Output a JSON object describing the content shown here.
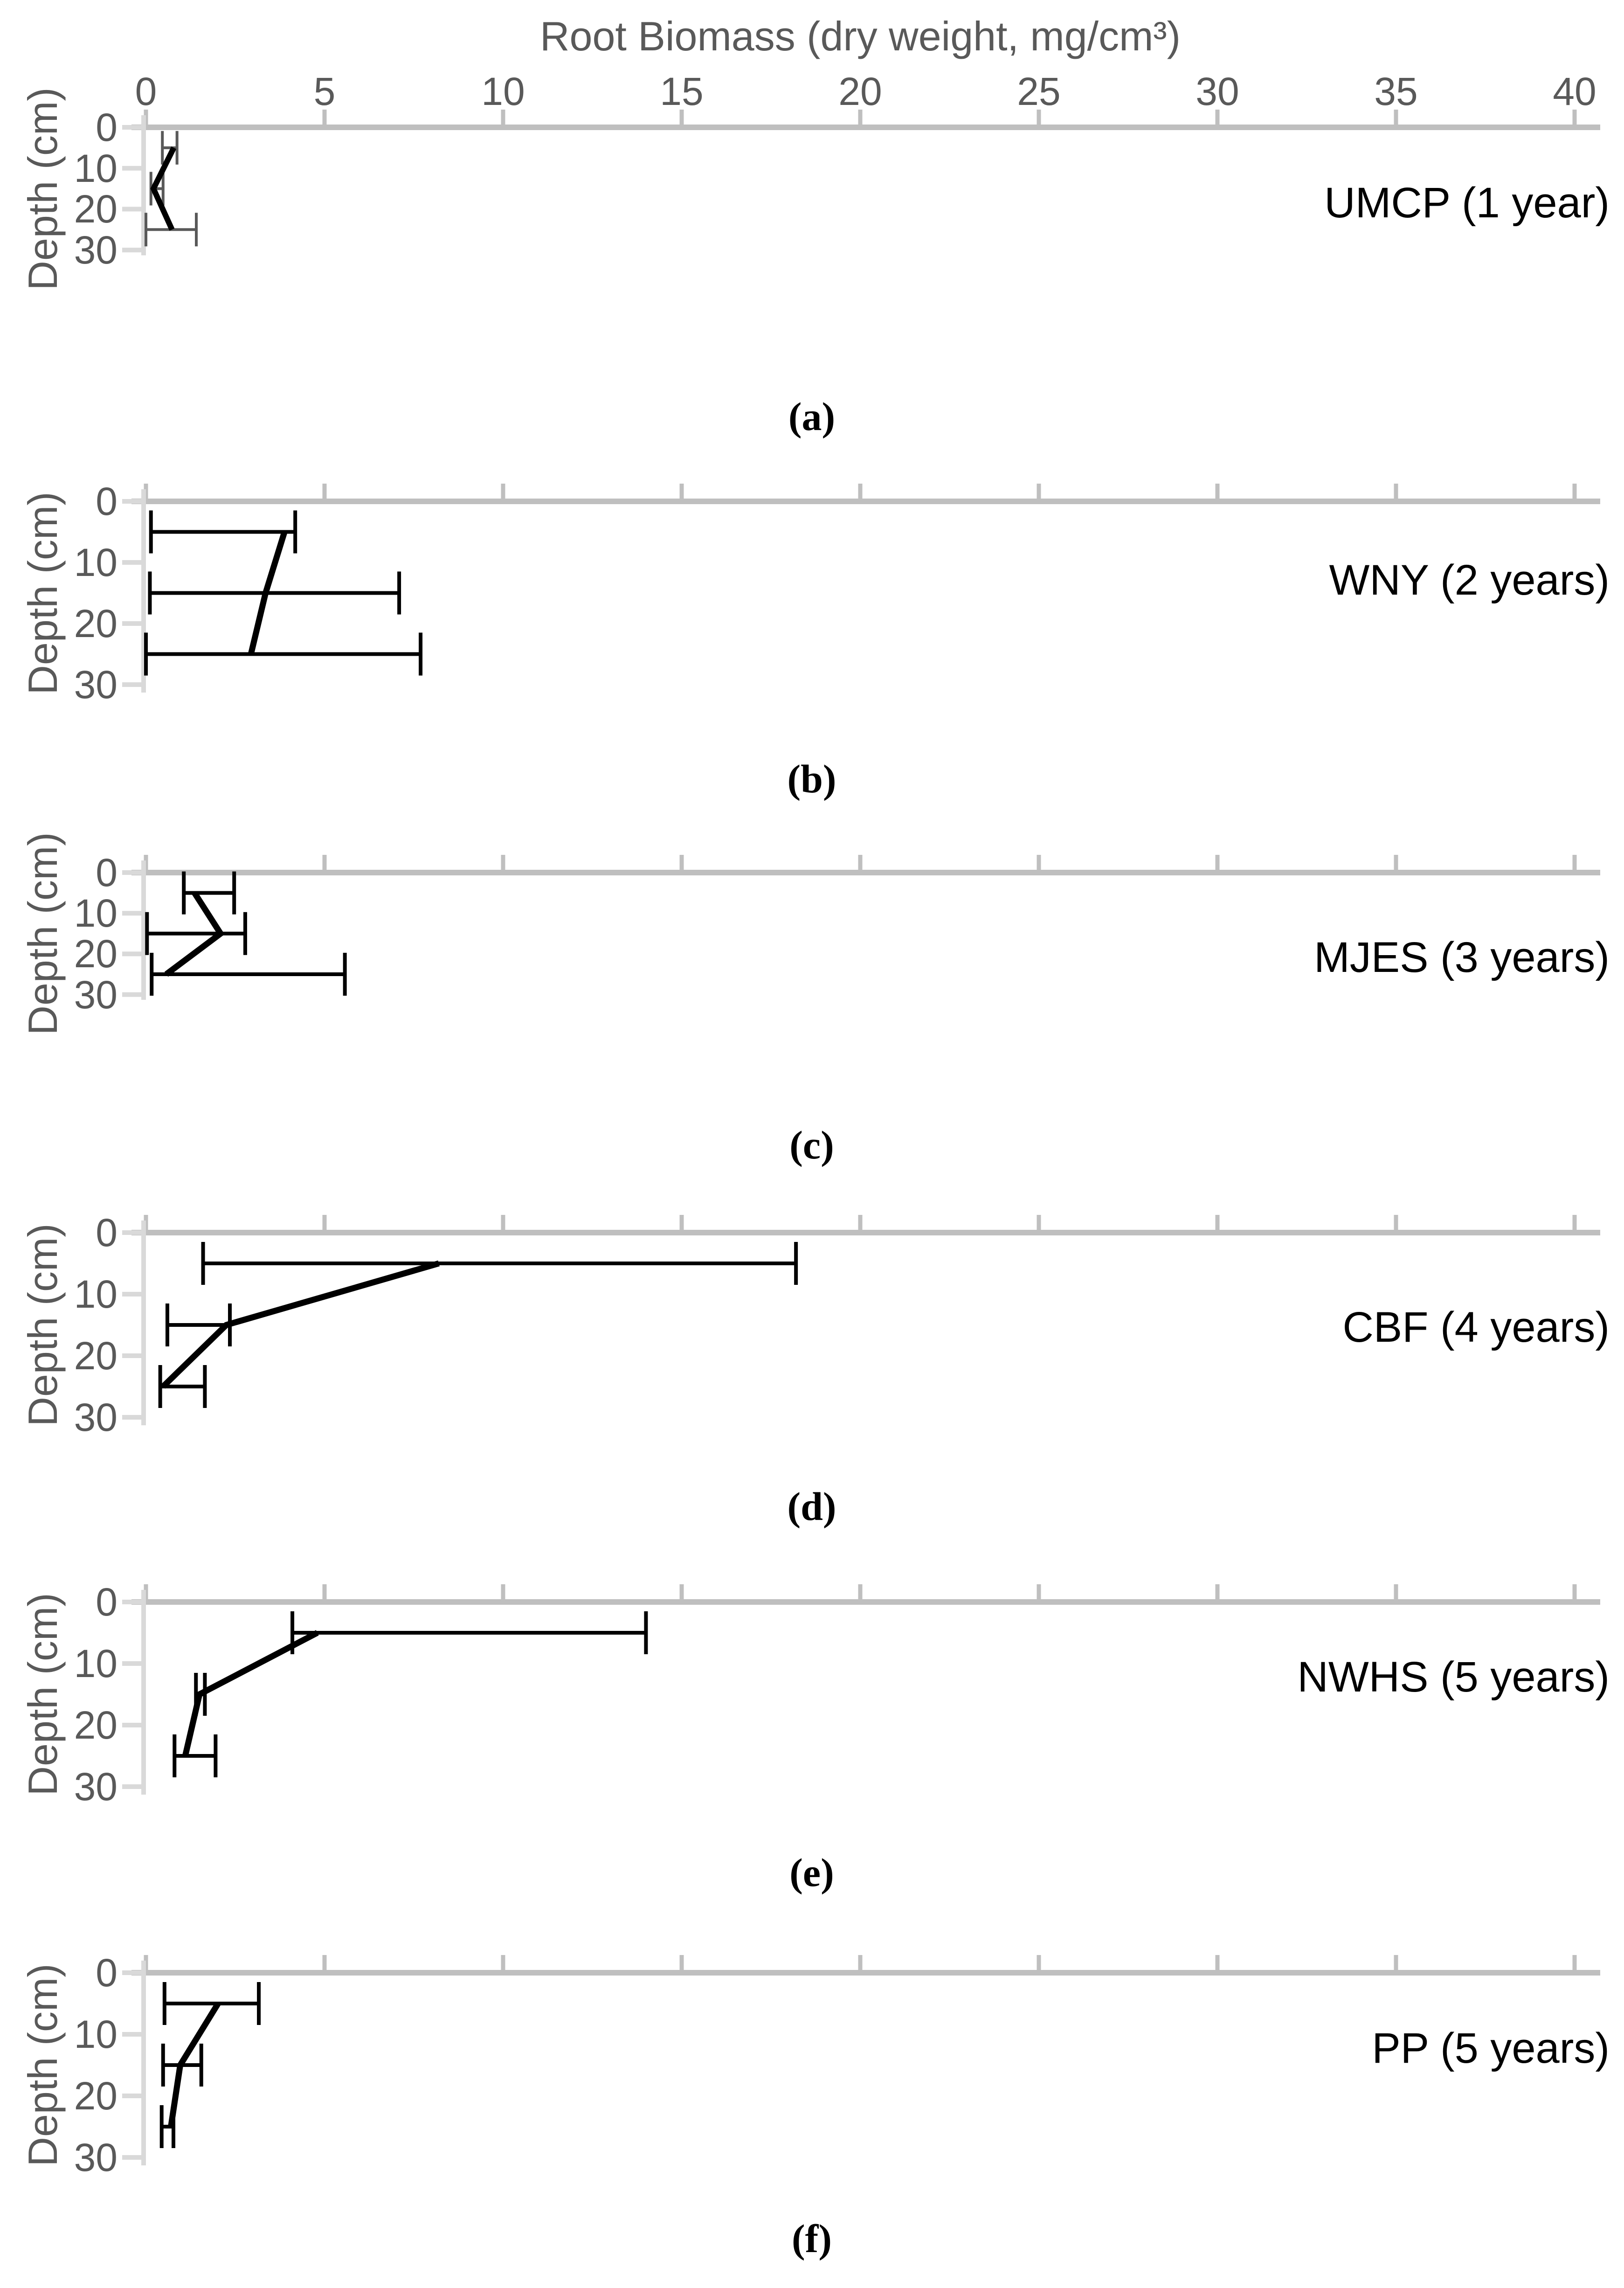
{
  "figure": {
    "title": "Root Biomass (dry weight, mg/cm³)",
    "x_axis": {
      "label": "Root Biomass (dry weight, mg/cm³)",
      "min": 0,
      "max": 40,
      "tick_step": 5,
      "tick_labels": [
        "0",
        "5",
        "10",
        "15",
        "20",
        "25",
        "30",
        "35",
        "40"
      ]
    },
    "y_axis": {
      "label": "Depth (cm)",
      "min": 0,
      "max": 30,
      "tick_step": 10,
      "tick_labels": [
        "0",
        "10",
        "20",
        "30"
      ]
    },
    "colors": {
      "x_axis_line": "#BFBFBF",
      "y_axis_line": "#D9D9D9",
      "tick_text": "#595959",
      "series_line": "#000000",
      "error_bar": "#000000",
      "panel_a_error_bar": "#595959"
    }
  },
  "chart_data": [
    {
      "type": "line",
      "panel": "a",
      "label": "UMCP (1 year)",
      "caption": "(a)",
      "depths_cm": [
        5,
        15,
        25
      ],
      "values": [
        0.78,
        0.21,
        0.73
      ],
      "error_low": [
        0.46,
        0.14,
        0.0
      ],
      "error_high": [
        0.87,
        0.48,
        1.41
      ],
      "xlim": [
        0,
        40
      ],
      "ylim": [
        0,
        30
      ]
    },
    {
      "type": "line",
      "panel": "b",
      "label": "WNY (2 years)",
      "caption": "(b)",
      "depths_cm": [
        5,
        15,
        25
      ],
      "values": [
        3.88,
        3.35,
        2.94
      ],
      "error_low": [
        0.14,
        0.11,
        0.0
      ],
      "error_high": [
        4.18,
        7.09,
        7.69
      ],
      "xlim": [
        0,
        40
      ],
      "ylim": [
        0,
        30
      ]
    },
    {
      "type": "line",
      "panel": "c",
      "label": "MJES (3 years)",
      "caption": "(c)",
      "depths_cm": [
        5,
        15,
        25
      ],
      "values": [
        1.36,
        2.09,
        0.57
      ],
      "error_low": [
        1.06,
        0.03,
        0.16
      ],
      "error_high": [
        2.47,
        2.78,
        5.57
      ],
      "xlim": [
        0,
        40
      ],
      "ylim": [
        0,
        30
      ]
    },
    {
      "type": "line",
      "panel": "d",
      "label": "CBF (4 years)",
      "caption": "(d)",
      "depths_cm": [
        5,
        15,
        25
      ],
      "values": [
        8.2,
        2.25,
        0.48
      ],
      "error_low": [
        1.6,
        0.6,
        0.4
      ],
      "error_high": [
        18.2,
        2.35,
        1.65
      ],
      "xlim": [
        0,
        40
      ],
      "ylim": [
        0,
        30
      ]
    },
    {
      "type": "line",
      "panel": "e",
      "label": "NWHS (5 years)",
      "caption": "(e)",
      "depths_cm": [
        5,
        15,
        25
      ],
      "values": [
        4.8,
        1.5,
        1.1
      ],
      "error_low": [
        4.1,
        1.4,
        0.8
      ],
      "error_high": [
        14.0,
        1.65,
        1.95
      ],
      "xlim": [
        0,
        40
      ],
      "ylim": [
        0,
        30
      ]
    },
    {
      "type": "line",
      "panel": "f",
      "label": "PP (5 years)",
      "caption": "(f)",
      "depths_cm": [
        5,
        15,
        25
      ],
      "values": [
        2.02,
        0.96,
        0.7
      ],
      "error_low": [
        0.52,
        0.48,
        0.44
      ],
      "error_high": [
        3.16,
        1.55,
        0.77
      ],
      "xlim": [
        0,
        40
      ],
      "ylim": [
        0,
        30
      ]
    }
  ]
}
